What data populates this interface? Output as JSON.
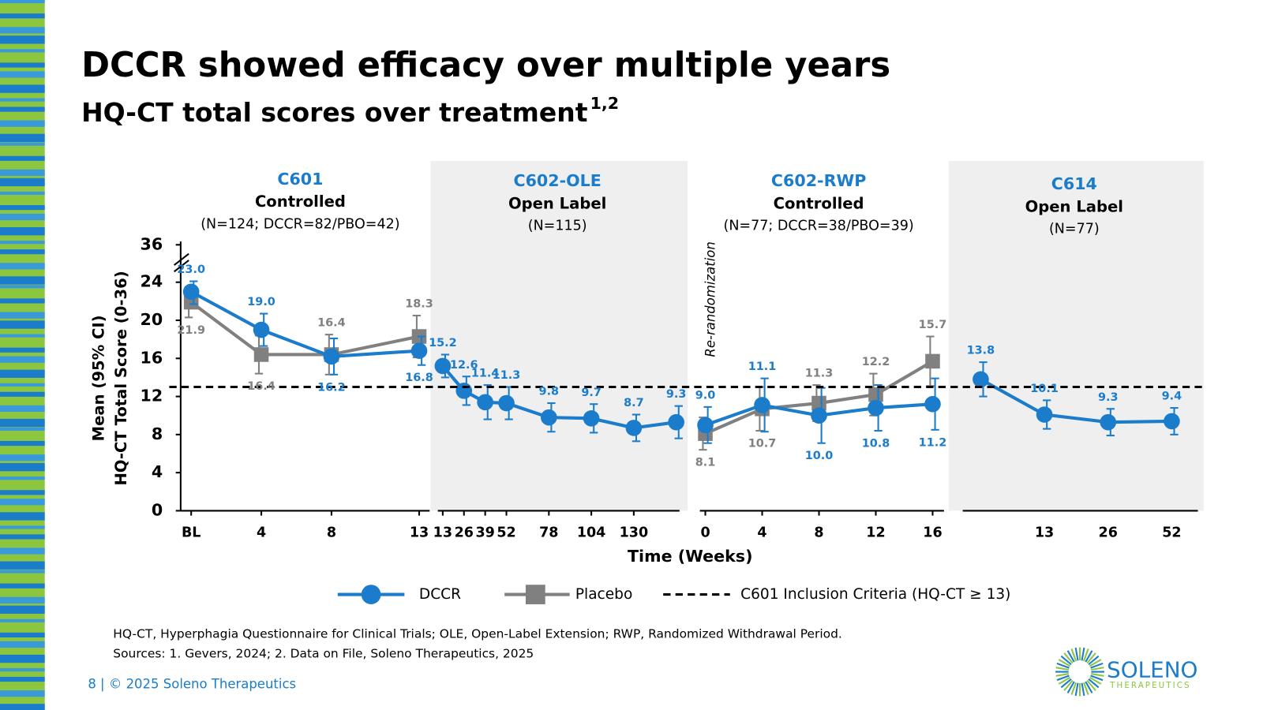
{
  "header": {
    "title": "DCCR showed efficacy over multiple years",
    "subtitle": "HQ-CT total scores over treatment",
    "subtitle_sup": "1,2"
  },
  "chart_data": {
    "type": "line",
    "y_label": [
      "Mean (95% CI)",
      "HQ-CT Total Score (0-36)"
    ],
    "x_label": "Time (Weeks)",
    "ylim": [
      0,
      36
    ],
    "yticks": [
      0,
      4,
      8,
      12,
      16,
      20,
      24,
      36
    ],
    "ref_line": {
      "value": 13,
      "label": "C601 Inclusion Criteria (HQ-CT ≥ 13)"
    },
    "annotation": "Re-randomization",
    "series": [
      {
        "name": "DCCR",
        "color": "#1b7ccc"
      },
      {
        "name": "Placebo",
        "color": "#808080"
      }
    ],
    "panels": [
      {
        "study": "C601",
        "design": "Controlled",
        "n": "(N=124; DCCR=82/PBO=42)",
        "shaded": false,
        "x": [
          0,
          4,
          8,
          13
        ],
        "xlim": [
          -0.6,
          13.6
        ],
        "xticks": [
          {
            "value": 0,
            "label": "BL"
          },
          4,
          8,
          13
        ],
        "series": [
          {
            "values": [
              23.0,
              19.0,
              16.2,
              16.8
            ],
            "value_labels": [
              "23.0",
              "19.0",
              "16.2",
              "16.8"
            ],
            "errors": [
              1.3,
              1.7,
              1.9,
              1.5
            ]
          },
          {
            "values": [
              21.9,
              16.4,
              16.4,
              18.3
            ],
            "value_labels": [
              "21.9",
              "16.4",
              "16.4",
              "18.3"
            ],
            "errors": [
              1.6,
              2.0,
              2.1,
              2.2
            ]
          }
        ]
      },
      {
        "study": "C602-OLE",
        "design": "Open Label",
        "n": "(N=115)",
        "shaded": true,
        "x": [
          13,
          26,
          39,
          52,
          78,
          104,
          130,
          156
        ],
        "xlim": [
          5.5,
          163
        ],
        "xticks": [
          13,
          26,
          39,
          52,
          78,
          104,
          130
        ],
        "series": [
          {
            "values": [
              15.2,
              12.6,
              11.4,
              11.3,
              9.8,
              9.7,
              8.7,
              9.3
            ],
            "value_labels": [
              "15.2",
              "12.6",
              "11.4",
              "11.3",
              "9.8",
              "9.7",
              "8.7",
              "9.3"
            ],
            "errors": [
              1.2,
              1.5,
              1.8,
              1.7,
              1.5,
              1.5,
              1.4,
              1.7
            ]
          }
        ]
      },
      {
        "study": "C602-RWP",
        "design": "Controlled",
        "n": "(N=77; DCCR=38/PBO=39)",
        "shaded": false,
        "x": [
          0,
          4,
          8,
          12,
          16
        ],
        "xlim": [
          -0.5,
          16.8
        ],
        "xticks": [
          0,
          4,
          8,
          12,
          16
        ],
        "series": [
          {
            "values": [
              9.0,
              11.1,
              10.0,
              10.8,
              11.2
            ],
            "value_labels": [
              "9.0",
              "11.1",
              "10.0",
              "10.8",
              "11.2"
            ],
            "errors": [
              1.9,
              2.8,
              2.9,
              2.4,
              2.7
            ]
          },
          {
            "values": [
              8.1,
              10.7,
              11.3,
              12.2,
              15.7
            ],
            "value_labels": [
              "8.1",
              "10.7",
              "11.3",
              "12.2",
              "15.7"
            ],
            "errors": [
              1.7,
              2.3,
              1.9,
              2.2,
              2.6
            ]
          }
        ]
      },
      {
        "study": "C614",
        "design": "Open Label",
        "n": "(N=77)",
        "shaded": true,
        "categories": [
          null,
          "13",
          "26",
          "52"
        ],
        "series": [
          {
            "values": [
              13.8,
              10.1,
              9.3,
              9.4
            ],
            "value_labels": [
              "13.8",
              "10.1",
              "9.3",
              "9.4"
            ],
            "errors": [
              1.8,
              1.5,
              1.4,
              1.4
            ]
          }
        ]
      }
    ]
  },
  "footnotes": [
    "HQ-CT, Hyperphagia Questionnaire for Clinical Trials; OLE, Open-Label Extension; RWP, Randomized Withdrawal Period.",
    "Sources: 1.  Gevers, 2024; 2. Data on File, Soleno Therapeutics, 2025"
  ],
  "footer": "8  |  © 2025 Soleno Therapeutics",
  "logo": {
    "name": "SOLENO",
    "tagline": "THERAPEUTICS"
  }
}
